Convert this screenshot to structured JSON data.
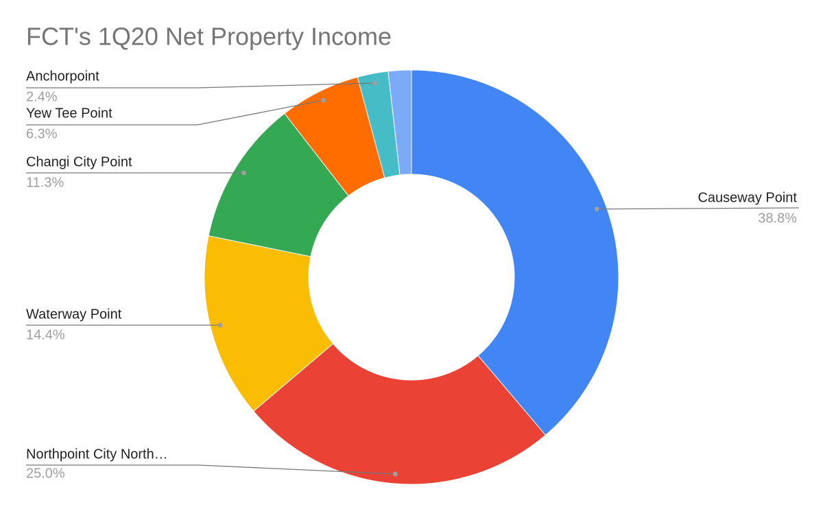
{
  "chart_data": {
    "type": "pie",
    "title": "FCT's 1Q20 Net Property Income",
    "categories": [
      "Causeway Point",
      "Northpoint City North…",
      "Waterway Point",
      "Changi City Point",
      "Yew Tee Point",
      "Anchorpoint",
      null
    ],
    "values": [
      38.8,
      25.0,
      14.4,
      11.3,
      6.3,
      2.4,
      1.8
    ],
    "value_labels": [
      "38.8%",
      "25.0%",
      "14.4%",
      "11.3%",
      "6.3%",
      "2.4%",
      null
    ],
    "colors": [
      "#4285f4",
      "#ea4335",
      "#fbbc04",
      "#34a853",
      "#ff6d01",
      "#46bdc6",
      "#7baaf7"
    ],
    "donut": true
  }
}
